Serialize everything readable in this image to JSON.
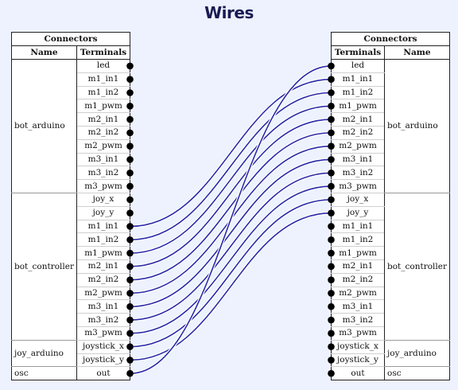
{
  "title": "Wires",
  "left_panel": {
    "header": "Connectors",
    "col_name": "Name",
    "col_terminals": "Terminals",
    "groups": [
      {
        "name": "bot_arduino",
        "terminals": [
          "led",
          "m1_in1",
          "m1_in2",
          "m1_pwm",
          "m2_in1",
          "m2_in2",
          "m2_pwm",
          "m3_in1",
          "m3_in2",
          "m3_pwm"
        ]
      },
      {
        "name": "bot_controller",
        "terminals": [
          "joy_x",
          "joy_y",
          "m1_in1",
          "m1_in2",
          "m1_pwm",
          "m2_in1",
          "m2_in2",
          "m2_pwm",
          "m3_in1",
          "m3_in2",
          "m3_pwm"
        ]
      },
      {
        "name": "joy_arduino",
        "terminals": [
          "joystick_x",
          "joystick_y"
        ]
      },
      {
        "name": "osc",
        "terminals": [
          "out"
        ]
      }
    ]
  },
  "right_panel": {
    "header": "Connectors",
    "col_name": "Name",
    "col_terminals": "Terminals",
    "groups": [
      {
        "name": "bot_arduino",
        "terminals": [
          "led",
          "m1_in1",
          "m1_in2",
          "m1_pwm",
          "m2_in1",
          "m2_in2",
          "m2_pwm",
          "m3_in1",
          "m3_in2",
          "m3_pwm"
        ]
      },
      {
        "name": "bot_controller",
        "terminals": [
          "joy_x",
          "joy_y",
          "m1_in1",
          "m1_in2",
          "m1_pwm",
          "m2_in1",
          "m2_in2",
          "m2_pwm",
          "m3_in1",
          "m3_in2",
          "m3_pwm"
        ]
      },
      {
        "name": "joy_arduino",
        "terminals": [
          "joystick_x",
          "joystick_y"
        ]
      },
      {
        "name": "osc",
        "terminals": [
          "out"
        ]
      }
    ]
  },
  "wires": [
    {
      "from": "bot_controller.m1_in1",
      "to": "bot_arduino.m1_in1"
    },
    {
      "from": "bot_controller.m1_in2",
      "to": "bot_arduino.m1_in2"
    },
    {
      "from": "bot_controller.m1_pwm",
      "to": "bot_arduino.m1_pwm"
    },
    {
      "from": "bot_controller.m2_in1",
      "to": "bot_arduino.m2_in1"
    },
    {
      "from": "bot_controller.m2_in2",
      "to": "bot_arduino.m2_in2"
    },
    {
      "from": "bot_controller.m2_pwm",
      "to": "bot_arduino.m2_pwm"
    },
    {
      "from": "bot_controller.m3_in1",
      "to": "bot_arduino.m3_in1"
    },
    {
      "from": "bot_controller.m3_in2",
      "to": "bot_arduino.m3_in2"
    },
    {
      "from": "bot_controller.m3_pwm",
      "to": "bot_arduino.m3_pwm"
    },
    {
      "from": "joy_arduino.joystick_x",
      "to": "bot_controller.joy_x"
    },
    {
      "from": "joy_arduino.joystick_y",
      "to": "bot_controller.joy_y"
    },
    {
      "from": "osc.out",
      "to": "bot_arduino.led"
    }
  ],
  "colors": {
    "background": "#edf2fe",
    "title": "#1a1a52",
    "wire": "#2a2aa8",
    "wire_outline": "#ffffff",
    "pin": "#000000"
  }
}
